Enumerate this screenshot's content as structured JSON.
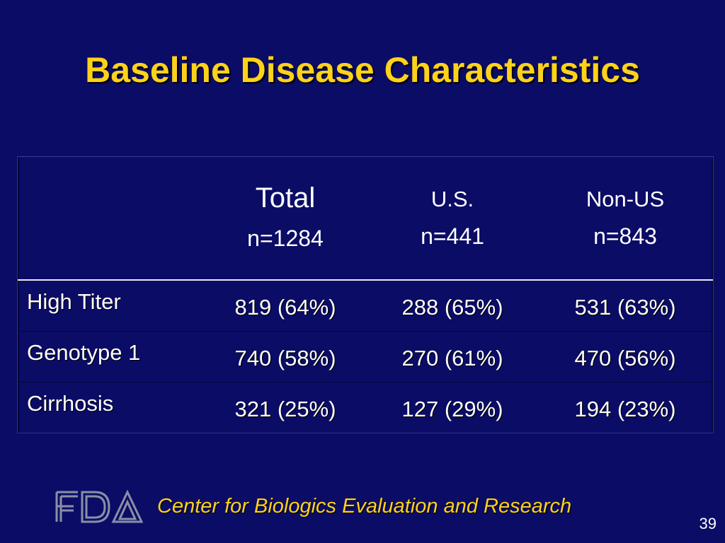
{
  "slide": {
    "title": "Baseline Disease Characteristics",
    "page_number": "39"
  },
  "table": {
    "columns": [
      {
        "name": "Total",
        "n": "n=1284"
      },
      {
        "name": "U.S.",
        "n": "n=441"
      },
      {
        "name": "Non-US",
        "n": "n=843"
      }
    ],
    "rows": [
      {
        "label": "High Titer",
        "values": [
          "819 (64%)",
          "288 (65%)",
          "531 (63%)"
        ]
      },
      {
        "label": "Genotype 1",
        "values": [
          "740 (58%)",
          "270 (61%)",
          "470 (56%)"
        ]
      },
      {
        "label": "Cirrhosis",
        "values": [
          "321 (25%)",
          "127 (29%)",
          "194 (23%)"
        ]
      }
    ]
  },
  "footer": {
    "logo_text": "FDA",
    "org_name": "Center for Biologics Evaluation and Research"
  },
  "colors": {
    "background": "#0b0c66",
    "title": "#ffd21a",
    "text": "#ffffff"
  }
}
